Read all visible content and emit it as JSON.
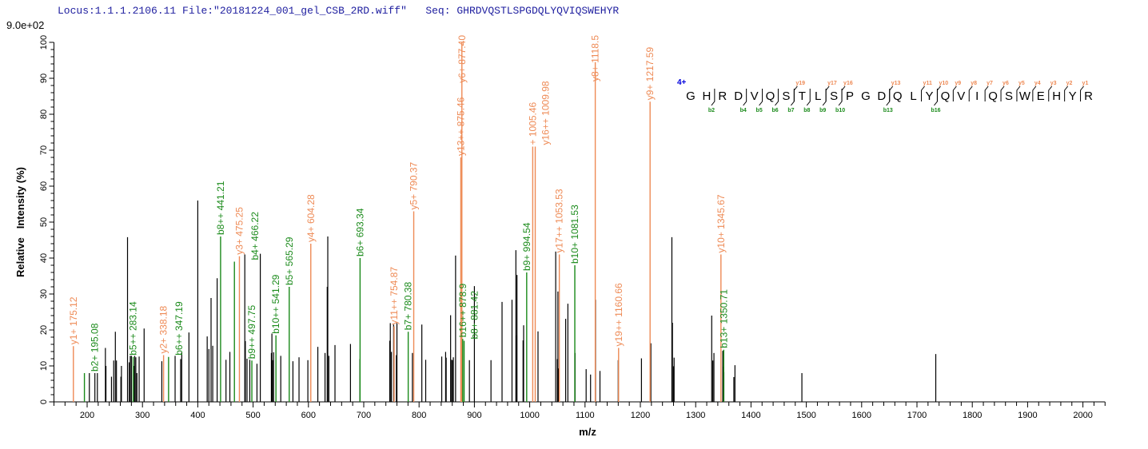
{
  "header": {
    "locus": "Locus:1.1.1.2106.11",
    "file": "File:\"20181224_001_gel_CSB_2RD.wiff\"",
    "seq_label": "Seq:",
    "sequence": "GHRDVQSTLSPGDQLYQVIQSWEHYR"
  },
  "max_intensity": "9.0e+02",
  "colors": {
    "y_ion": "#ee8a55",
    "b_ion": "#1a8a1a",
    "peak": "#000000",
    "charge": "#0000dd"
  },
  "chart_data": {
    "type": "bar",
    "xlabel": "m/z",
    "ylabel": "Relative   Intensity (%)",
    "xlim": [
      140,
      2040
    ],
    "ylim": [
      0,
      100
    ],
    "xticks": [
      200,
      300,
      400,
      500,
      600,
      700,
      800,
      900,
      1000,
      1100,
      1200,
      1300,
      1400,
      1500,
      1600,
      1700,
      1800,
      1900,
      2000
    ],
    "yticks": [
      0,
      10,
      20,
      30,
      40,
      50,
      60,
      70,
      80,
      90,
      100
    ],
    "annotated_peaks": [
      {
        "mz": 175.12,
        "i": 15.5,
        "label": "y1+ 175.12",
        "ion": "y"
      },
      {
        "mz": 195.08,
        "i": 8,
        "label": "b2+ 195.08",
        "ion": "b"
      },
      {
        "mz": 283.14,
        "i": 12.5,
        "label": "b5++ 283.14",
        "ion": "b"
      },
      {
        "mz": 338.18,
        "i": 13,
        "label": "y2+ 338.18",
        "ion": "y"
      },
      {
        "mz": 347.19,
        "i": 12.5,
        "label": "b6++ 347.19",
        "ion": "b"
      },
      {
        "mz": 441.21,
        "i": 46,
        "label": "b8++ 441.21",
        "ion": "b"
      },
      {
        "mz": 466.22,
        "i": 39,
        "label": "b4+ 466.22",
        "ion": "b"
      },
      {
        "mz": 475.25,
        "i": 40.5,
        "label": "y3+ 475.25",
        "ion": "y"
      },
      {
        "mz": 497.75,
        "i": 11.5,
        "label": "b9++ 497.75",
        "ion": "b"
      },
      {
        "mz": 541.29,
        "i": 18.5,
        "label": "b10++ 541.29",
        "ion": "b"
      },
      {
        "mz": 565.29,
        "i": 32,
        "label": "b5+ 565.29",
        "ion": "b"
      },
      {
        "mz": 604.28,
        "i": 44,
        "label": "y4+ 604.28",
        "ion": "y"
      },
      {
        "mz": 693.34,
        "i": 40,
        "label": "b6+ 693.34",
        "ion": "b"
      },
      {
        "mz": 754.87,
        "i": 21,
        "label": "y11++ 754.87",
        "ion": "y"
      },
      {
        "mz": 780.38,
        "i": 19.5,
        "label": "b7+ 780.38",
        "ion": "b"
      },
      {
        "mz": 790.37,
        "i": 53,
        "label": "y5+ 790.37",
        "ion": "y"
      },
      {
        "mz": 875.46,
        "i": 68,
        "label": "y13++ 875.46",
        "ion": "y"
      },
      {
        "mz": 877.4,
        "i": 100,
        "label": "y6+ 877.40",
        "ion": "y"
      },
      {
        "mz": 878.9,
        "i": 17.5,
        "label": "b16++ 878.9",
        "ion": "b"
      },
      {
        "mz": 881.42,
        "i": 17,
        "label": "b8+ 881.42",
        "ion": "b"
      },
      {
        "mz": 994.54,
        "i": 36,
        "label": "b9+ 994.54",
        "ion": "b"
      },
      {
        "mz": 1005.46,
        "i": 71,
        "label": "+ 1005.46",
        "ion": "y"
      },
      {
        "mz": 1009.98,
        "i": 71,
        "label": "y16++ 1009.98",
        "ion": "y"
      },
      {
        "mz": 1053.53,
        "i": 41,
        "label": "y17++ 1053.53",
        "ion": "y"
      },
      {
        "mz": 1081.53,
        "i": 38,
        "label": "b10+ 1081.53",
        "ion": "b"
      },
      {
        "mz": 1118.5,
        "i": 94.5,
        "label": "y8+ 1118.5",
        "ion": "y"
      },
      {
        "mz": 1160.66,
        "i": 15,
        "label": "y19++ 1160.66",
        "ion": "y"
      },
      {
        "mz": 1217.59,
        "i": 83.5,
        "label": "y9+ 1217.59",
        "ion": "y"
      },
      {
        "mz": 1345.67,
        "i": 41,
        "label": "y10+ 1345.67",
        "ion": "y"
      },
      {
        "mz": 1350.71,
        "i": 14.5,
        "label": "b13+ 1350.71",
        "ion": "b"
      }
    ],
    "peaks": [
      [
        204,
        8
      ],
      [
        214,
        8
      ],
      [
        218.5,
        8
      ],
      [
        233,
        15
      ],
      [
        234,
        10
      ],
      [
        244,
        7
      ],
      [
        248,
        11.5
      ],
      [
        251,
        19.5
      ],
      [
        253,
        11.5
      ],
      [
        261,
        7
      ],
      [
        262,
        10
      ],
      [
        273,
        45.8
      ],
      [
        276,
        11
      ],
      [
        278,
        12.8
      ],
      [
        280,
        12.8
      ],
      [
        284,
        10
      ],
      [
        286,
        12.8
      ],
      [
        288,
        12.4
      ],
      [
        290,
        8
      ],
      [
        294,
        12.6
      ],
      [
        303,
        20.4
      ],
      [
        335,
        11.3
      ],
      [
        359,
        12.8
      ],
      [
        369,
        11.9
      ],
      [
        371,
        13.8
      ],
      [
        384,
        19.3
      ],
      [
        400,
        56
      ],
      [
        417,
        18.2
      ],
      [
        420,
        14.7
      ],
      [
        424,
        28.9
      ],
      [
        427,
        15.6
      ],
      [
        435,
        34.4
      ],
      [
        451,
        11.7
      ],
      [
        458,
        13.9
      ],
      [
        485,
        41
      ],
      [
        486,
        16.9
      ],
      [
        489,
        12
      ],
      [
        494,
        11.7
      ],
      [
        507,
        10.6
      ],
      [
        513,
        41.2
      ],
      [
        533,
        13.6
      ],
      [
        534,
        19
      ],
      [
        535,
        11.6
      ],
      [
        537,
        13.8
      ],
      [
        550,
        12.8
      ],
      [
        572,
        11.3
      ],
      [
        583,
        12.4
      ],
      [
        599,
        11.6
      ],
      [
        617,
        15.3
      ],
      [
        630,
        13.6
      ],
      [
        634,
        32
      ],
      [
        635,
        46
      ],
      [
        637,
        12.8
      ],
      [
        648,
        15.8
      ],
      [
        676,
        16.1
      ],
      [
        693,
        11.9
      ],
      [
        747,
        17
      ],
      [
        748,
        21.9
      ],
      [
        750,
        13.9
      ],
      [
        754,
        21.5
      ],
      [
        759,
        13
      ],
      [
        760,
        21.9
      ],
      [
        788,
        13.6
      ],
      [
        805,
        21.5
      ],
      [
        812,
        11.7
      ],
      [
        841,
        12.6
      ],
      [
        848,
        13.9
      ],
      [
        849,
        12.3
      ],
      [
        857,
        24.1
      ],
      [
        859,
        11.7
      ],
      [
        860,
        11.6
      ],
      [
        862,
        12.4
      ],
      [
        866,
        40.7
      ],
      [
        891,
        11.6
      ],
      [
        900,
        32.2
      ],
      [
        930,
        11.6
      ],
      [
        950,
        27.8
      ],
      [
        968,
        28.4
      ],
      [
        975,
        42.2
      ],
      [
        976,
        18.4
      ],
      [
        977,
        35.3
      ],
      [
        988,
        17.1
      ],
      [
        989,
        21.3
      ],
      [
        1015,
        19.6
      ],
      [
        1047,
        41.8
      ],
      [
        1050,
        11.9
      ],
      [
        1051,
        30.7
      ],
      [
        1052,
        9.3
      ],
      [
        1065,
        23.1
      ],
      [
        1069,
        27.3
      ],
      [
        1082,
        13.6
      ],
      [
        1102,
        9.1
      ],
      [
        1110,
        7.6
      ],
      [
        1119,
        28.4
      ],
      [
        1127,
        8.6
      ],
      [
        1160,
        11.6
      ],
      [
        1202,
        12.1
      ],
      [
        1219,
        16.3
      ],
      [
        1257,
        45.8
      ],
      [
        1258,
        22
      ],
      [
        1260,
        9.9
      ],
      [
        1261,
        12.3
      ],
      [
        1329,
        24
      ],
      [
        1331,
        11.5
      ],
      [
        1333,
        13.6
      ],
      [
        1349,
        14.2
      ],
      [
        1350,
        9.8
      ],
      [
        1351,
        8.3
      ],
      [
        1369,
        6.9
      ],
      [
        1371,
        10.2
      ],
      [
        1492,
        8
      ],
      [
        1734,
        13.3
      ]
    ]
  },
  "fragment_map": {
    "charge": "4+",
    "residues": [
      "G",
      "H",
      "R",
      "D",
      "V",
      "Q",
      "S",
      "T",
      "L",
      "S",
      "P",
      "G",
      "D",
      "Q",
      "L",
      "Y",
      "Q",
      "V",
      "I",
      "Q",
      "S",
      "W",
      "E",
      "H",
      "Y",
      "R"
    ],
    "b_ions": [
      2,
      4,
      5,
      6,
      7,
      8,
      9,
      10,
      13,
      16
    ],
    "y_ions": [
      19,
      17,
      16,
      13,
      11,
      10,
      9,
      8,
      7,
      6,
      5,
      4,
      3,
      2,
      1
    ]
  }
}
